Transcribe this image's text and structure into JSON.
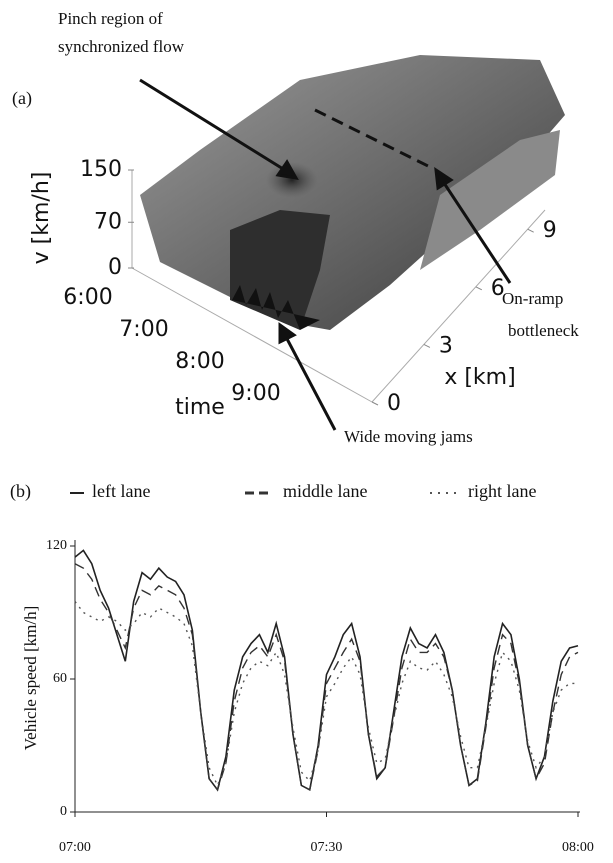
{
  "chart_data": [
    {
      "type": "surface3d",
      "panel_label": "(a)",
      "zlabel": "v [km/h]",
      "zlim": [
        0,
        150
      ],
      "zticks": [
        0,
        70,
        150
      ],
      "ylabel": "time",
      "ycategories": [
        "6:00",
        "7:00",
        "8:00",
        "9:00"
      ],
      "xlabel": "x [km]",
      "xlim": [
        0,
        10
      ],
      "xticks": [
        0,
        3,
        6,
        9
      ],
      "annotations": [
        {
          "lines": [
            "Pinch region of",
            "synchronized flow"
          ]
        },
        {
          "lines": [
            "On-ramp",
            "bottleneck"
          ]
        },
        {
          "lines": [
            "Wide moving jams"
          ]
        }
      ]
    },
    {
      "type": "line",
      "panel_label": "(b)",
      "ylabel": "Vehicle speed [km/h]",
      "ylim": [
        0,
        120
      ],
      "yticks": [
        0,
        60,
        120
      ],
      "xlim": [
        "07:00",
        "08:00"
      ],
      "xticks": [
        "07:00",
        "07:30",
        "08:00"
      ],
      "x": [
        "07:00",
        "07:01",
        "07:02",
        "07:03",
        "07:04",
        "07:05",
        "07:06",
        "07:07",
        "07:08",
        "07:09",
        "07:10",
        "07:11",
        "07:12",
        "07:13",
        "07:14",
        "07:15",
        "07:16",
        "07:17",
        "07:18",
        "07:19",
        "07:20",
        "07:21",
        "07:22",
        "07:23",
        "07:24",
        "07:25",
        "07:26",
        "07:27",
        "07:28",
        "07:29",
        "07:30",
        "07:31",
        "07:32",
        "07:33",
        "07:34",
        "07:35",
        "07:36",
        "07:37",
        "07:38",
        "07:39",
        "07:40",
        "07:41",
        "07:42",
        "07:43",
        "07:44",
        "07:45",
        "07:46",
        "07:47",
        "07:48",
        "07:49",
        "07:50",
        "07:51",
        "07:52",
        "07:53",
        "07:54",
        "07:55",
        "07:56",
        "07:57",
        "07:58",
        "07:59",
        "08:00"
      ],
      "series": [
        {
          "name": "left lane",
          "color": "#222222",
          "dash": "solid",
          "values": [
            115,
            118,
            112,
            100,
            92,
            80,
            68,
            95,
            108,
            105,
            110,
            106,
            104,
            98,
            82,
            45,
            15,
            10,
            25,
            55,
            70,
            76,
            80,
            72,
            85,
            70,
            35,
            12,
            10,
            30,
            62,
            70,
            80,
            85,
            70,
            35,
            15,
            20,
            45,
            70,
            83,
            76,
            74,
            80,
            72,
            55,
            30,
            12,
            15,
            40,
            70,
            85,
            80,
            60,
            30,
            15,
            25,
            50,
            68,
            74,
            75
          ]
        },
        {
          "name": "middle lane",
          "color": "#333333",
          "dash": "dashed",
          "values": [
            112,
            110,
            105,
            96,
            90,
            82,
            74,
            92,
            100,
            98,
            102,
            100,
            98,
            92,
            80,
            45,
            15,
            10,
            22,
            50,
            65,
            72,
            75,
            70,
            80,
            68,
            35,
            12,
            10,
            28,
            58,
            65,
            72,
            78,
            68,
            35,
            16,
            20,
            42,
            65,
            78,
            72,
            72,
            76,
            70,
            55,
            30,
            12,
            14,
            38,
            65,
            80,
            76,
            58,
            30,
            15,
            22,
            45,
            62,
            70,
            72
          ]
        },
        {
          "name": "right lane",
          "color": "#555555",
          "dash": "dotted",
          "values": [
            95,
            90,
            88,
            86,
            88,
            86,
            82,
            85,
            90,
            88,
            92,
            90,
            88,
            85,
            75,
            45,
            20,
            12,
            22,
            45,
            58,
            65,
            68,
            66,
            72,
            62,
            38,
            18,
            14,
            28,
            52,
            58,
            65,
            70,
            62,
            38,
            22,
            24,
            42,
            58,
            68,
            65,
            64,
            68,
            62,
            52,
            34,
            20,
            20,
            38,
            58,
            72,
            68,
            55,
            32,
            20,
            25,
            45,
            55,
            58,
            58
          ]
        }
      ]
    }
  ]
}
